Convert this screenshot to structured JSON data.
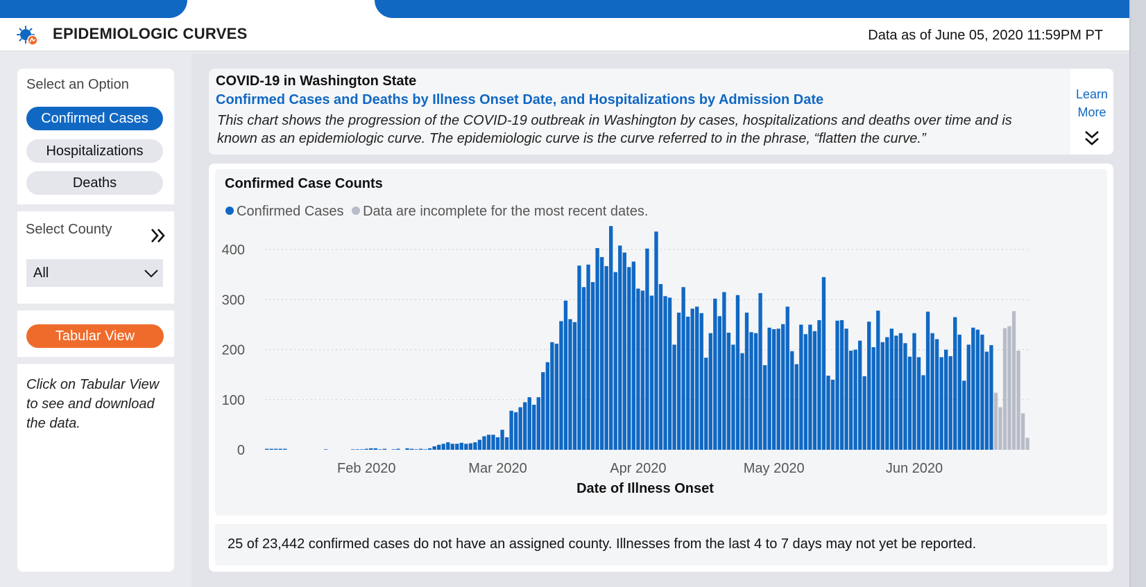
{
  "header": {
    "title": "EPIDEMIOLOGIC CURVES",
    "data_as_of": "Data as of June 05, 2020 11:59PM PT",
    "logo_icon": "virus-logo-icon"
  },
  "sidebar": {
    "option_label": "Select an Option",
    "options": [
      {
        "label": "Confirmed Cases",
        "active": true
      },
      {
        "label": "Hospitalizations",
        "active": false
      },
      {
        "label": "Deaths",
        "active": false
      }
    ],
    "county_label": "Select County",
    "county_value": "All",
    "tabular_button": "Tabular View",
    "note": "Click on Tabular View to see and download the data."
  },
  "info": {
    "supertitle": "COVID-19 in Washington State",
    "title": "Confirmed Cases and Deaths by Illness Onset Date, and Hospitalizations by Admission Date",
    "description": "This chart shows the progression of the COVID-19 outbreak in Washington by cases, hospitalizations and deaths over time and is known as an epidemiologic curve. The epidemiologic curve is the curve referred to in the phrase, “flatten the curve.”",
    "learn_more": "Learn More"
  },
  "colors": {
    "accent": "#1068c3",
    "incomplete": "#b8bcc8",
    "button_orange": "#ef6b2b"
  },
  "chart_data": {
    "type": "bar",
    "title": "Confirmed Case Counts",
    "xlabel": "Date of Illness Onset",
    "ylabel": "",
    "ylim": [
      0,
      450
    ],
    "yticks": [
      0,
      100,
      200,
      300,
      400
    ],
    "x_start": "2020-01-10",
    "x_ticks": [
      "Feb 2020",
      "Mar 2020",
      "Apr 2020",
      "May 2020",
      "Jun 2020"
    ],
    "legend_placement": "top-left",
    "grid": true,
    "series": [
      {
        "name": "Confirmed Cases",
        "color": "#1068c3",
        "values": [
          2,
          2,
          2,
          2,
          2,
          0,
          0,
          0,
          0,
          0,
          0,
          0,
          0,
          1,
          0,
          0,
          0,
          0,
          0,
          1,
          1,
          1,
          2,
          3,
          3,
          1,
          2,
          0,
          1,
          2,
          0,
          3,
          2,
          1,
          2,
          1,
          3,
          7,
          10,
          12,
          15,
          12,
          12,
          14,
          12,
          13,
          15,
          20,
          27,
          30,
          30,
          25,
          40,
          25,
          78,
          75,
          85,
          95,
          105,
          90,
          105,
          155,
          175,
          215,
          212,
          257,
          298,
          261,
          255,
          368,
          325,
          370,
          335,
          403,
          385,
          367,
          447,
          355,
          408,
          394,
          365,
          376,
          322,
          318,
          402,
          308,
          436,
          331,
          307,
          304,
          210,
          274,
          325,
          266,
          282,
          286,
          273,
          184,
          233,
          302,
          267,
          315,
          234,
          210,
          309,
          193,
          274,
          235,
          233,
          313,
          169,
          244,
          241,
          242,
          251,
          286,
          197,
          171,
          250,
          231,
          250,
          237,
          259,
          345,
          148,
          140,
          258,
          259,
          242,
          198,
          200,
          218,
          147,
          256,
          205,
          278,
          215,
          225,
          242,
          228,
          233,
          213,
          186,
          233,
          185,
          149,
          276,
          233,
          221,
          185,
          200,
          187,
          265,
          230,
          138,
          210,
          244,
          240,
          230,
          196,
          209
        ]
      },
      {
        "name": "Data are incomplete for the most recent dates.",
        "color": "#b8bcc8",
        "values": [
          114,
          85,
          243,
          247,
          277,
          198,
          73,
          24
        ]
      }
    ]
  },
  "footnote": "25 of 23,442 confirmed cases do not have an assigned county. Illnesses from the last 4 to 7 days may not yet be reported."
}
